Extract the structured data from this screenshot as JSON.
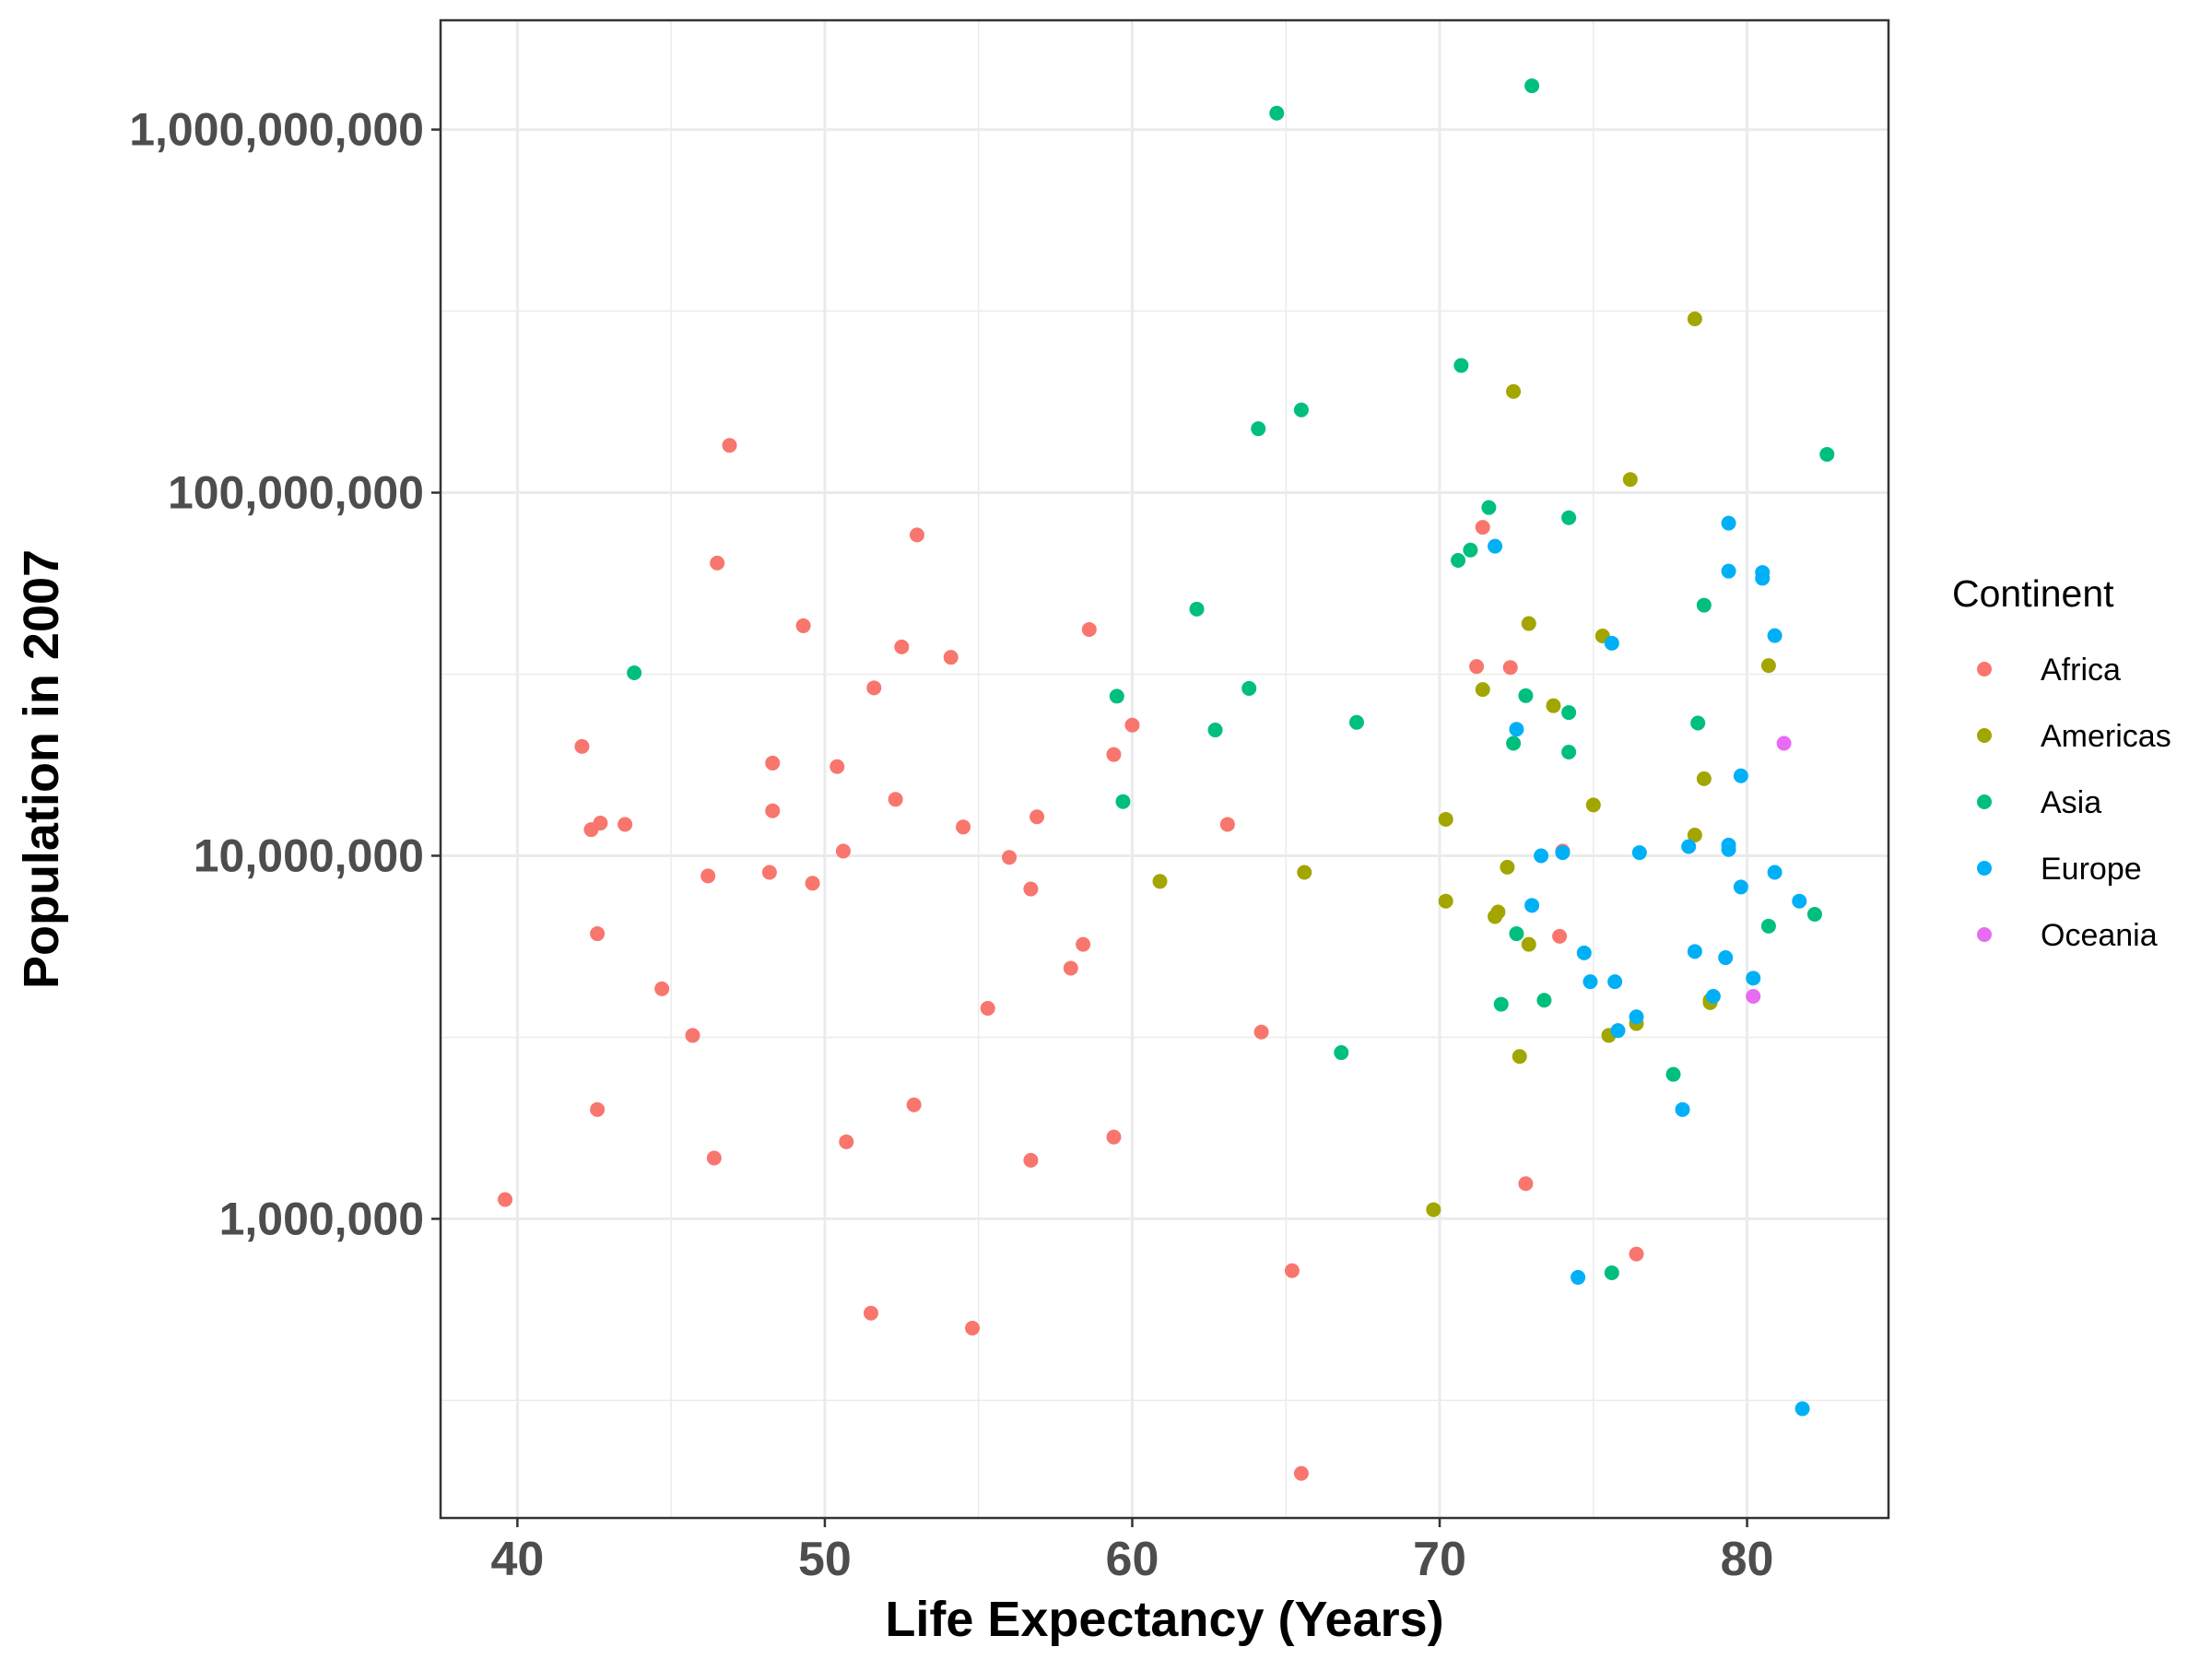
{
  "chart_data": {
    "type": "scatter",
    "xlabel": "Life Expectancy (Years)",
    "ylabel": "Population in 2007",
    "x_scale": "linear",
    "y_scale": "log10",
    "xlim": [
      37.5,
      84.6
    ],
    "ylim": [
      150000,
      2000000000
    ],
    "x_ticks": [
      40,
      50,
      60,
      70,
      80
    ],
    "y_ticks": [
      1000000,
      10000000,
      100000000,
      1000000000
    ],
    "y_tick_labels": [
      "1,000,000",
      "10,000,000",
      "100,000,000",
      "1,000,000,000"
    ],
    "grid": true,
    "legend": {
      "title": "Continent",
      "position": "right"
    },
    "series": [
      {
        "name": "Africa",
        "color": "#F8766D",
        "points": [
          [
            39.6,
            1130000
          ],
          [
            42.1,
            20000000
          ],
          [
            42.4,
            11800000
          ],
          [
            42.7,
            12300000
          ],
          [
            43.5,
            12200000
          ],
          [
            42.6,
            6100000
          ],
          [
            42.6,
            2000000
          ],
          [
            44.7,
            4300000
          ],
          [
            45.7,
            3200000
          ],
          [
            46.2,
            8800000
          ],
          [
            46.4,
            1470000
          ],
          [
            46.5,
            64000000
          ],
          [
            46.9,
            135000000
          ],
          [
            48.2,
            9000000
          ],
          [
            48.3,
            18000000
          ],
          [
            48.3,
            13300000
          ],
          [
            49.3,
            43000000
          ],
          [
            49.6,
            8400000
          ],
          [
            50.4,
            17600000
          ],
          [
            50.6,
            10300000
          ],
          [
            50.7,
            1630000
          ],
          [
            51.5,
            550000
          ],
          [
            51.6,
            29000000
          ],
          [
            52.3,
            14300000
          ],
          [
            52.5,
            37600000
          ],
          [
            52.9,
            2060000
          ],
          [
            53.0,
            76500000
          ],
          [
            54.1,
            35200000
          ],
          [
            54.5,
            12000000
          ],
          [
            54.8,
            500000
          ],
          [
            55.3,
            3800000
          ],
          [
            56.0,
            9900000
          ],
          [
            56.7,
            8100000
          ],
          [
            56.7,
            1450000
          ],
          [
            56.9,
            12800000
          ],
          [
            58.0,
            4900000
          ],
          [
            58.4,
            5700000
          ],
          [
            58.6,
            42000000
          ],
          [
            59.4,
            19000000
          ],
          [
            59.4,
            1680000
          ],
          [
            60.0,
            22900000
          ],
          [
            63.1,
            12200000
          ],
          [
            64.2,
            3270000
          ],
          [
            65.2,
            720000
          ],
          [
            65.5,
            199000
          ],
          [
            71.2,
            33200000
          ],
          [
            71.4,
            80300000
          ],
          [
            72.3,
            33000000
          ],
          [
            72.8,
            1250000
          ],
          [
            73.9,
            6000000
          ],
          [
            74.0,
            10300000
          ],
          [
            76.4,
            800000
          ]
        ]
      },
      {
        "name": "Americas",
        "color": "#A3A500",
        "points": [
          [
            60.9,
            8500000
          ],
          [
            65.6,
            9000000
          ],
          [
            69.8,
            1060000
          ],
          [
            70.2,
            12600000
          ],
          [
            70.2,
            7500000
          ],
          [
            71.4,
            28700000
          ],
          [
            71.8,
            6800000
          ],
          [
            71.9,
            7000000
          ],
          [
            72.2,
            9300000
          ],
          [
            72.4,
            190000000
          ],
          [
            72.6,
            2800000
          ],
          [
            72.9,
            43600000
          ],
          [
            72.9,
            5700000
          ],
          [
            73.7,
            25900000
          ],
          [
            75.0,
            13800000
          ],
          [
            75.3,
            40300000
          ],
          [
            75.5,
            3200000
          ],
          [
            76.2,
            108700000
          ],
          [
            76.4,
            3450000
          ],
          [
            78.3,
            11400000
          ],
          [
            78.3,
            301000000
          ],
          [
            78.6,
            16300000
          ],
          [
            78.8,
            4000000
          ],
          [
            78.8,
            3940000
          ],
          [
            80.7,
            33400000
          ]
        ]
      },
      {
        "name": "Asia",
        "color": "#00BF7D",
        "points": [
          [
            43.8,
            31900000
          ],
          [
            59.5,
            27500000
          ],
          [
            59.7,
            14100000
          ],
          [
            62.1,
            47800000
          ],
          [
            62.7,
            22200000
          ],
          [
            63.8,
            28900000
          ],
          [
            64.1,
            150000000
          ],
          [
            64.7,
            1110000000
          ],
          [
            65.5,
            169000000
          ],
          [
            66.8,
            2870000
          ],
          [
            67.3,
            23300000
          ],
          [
            70.6,
            65100000
          ],
          [
            70.7,
            224000000
          ],
          [
            71.0,
            69500000
          ],
          [
            71.6,
            91000000
          ],
          [
            72.0,
            3900000
          ],
          [
            72.4,
            20400000
          ],
          [
            72.5,
            6100000
          ],
          [
            72.8,
            27600000
          ],
          [
            73.0,
            1320000000
          ],
          [
            73.4,
            4000000
          ],
          [
            74.2,
            19300000
          ],
          [
            74.2,
            24800000
          ],
          [
            74.2,
            85300000
          ],
          [
            75.6,
            710000
          ],
          [
            77.6,
            2500000
          ],
          [
            78.4,
            23200000
          ],
          [
            78.6,
            49000000
          ],
          [
            80.7,
            6400000
          ],
          [
            82.2,
            6900000
          ],
          [
            82.6,
            127500000
          ]
        ]
      },
      {
        "name": "Europe",
        "color": "#00B0F6",
        "points": [
          [
            71.8,
            71200000
          ],
          [
            72.5,
            22300000
          ],
          [
            73.0,
            7300000
          ],
          [
            73.3,
            10000000
          ],
          [
            74.0,
            10200000
          ],
          [
            74.5,
            690000
          ],
          [
            74.7,
            5400000
          ],
          [
            74.9,
            4500000
          ],
          [
            75.6,
            38500000
          ],
          [
            75.7,
            4500000
          ],
          [
            75.8,
            3300000
          ],
          [
            76.4,
            3600000
          ],
          [
            76.5,
            10200000
          ],
          [
            77.9,
            2000000
          ],
          [
            78.1,
            10600000
          ],
          [
            78.3,
            5450000
          ],
          [
            78.9,
            4100000
          ],
          [
            79.3,
            5240000
          ],
          [
            79.4,
            82400000
          ],
          [
            79.4,
            10700000
          ],
          [
            79.4,
            60800000
          ],
          [
            79.4,
            10400000
          ],
          [
            79.8,
            16600000
          ],
          [
            79.8,
            8200000
          ],
          [
            80.2,
            4600000
          ],
          [
            80.5,
            58100000
          ],
          [
            80.5,
            60300000
          ],
          [
            80.9,
            40400000
          ],
          [
            80.9,
            9000000
          ],
          [
            81.7,
            7500000
          ],
          [
            81.8,
            300000
          ]
        ]
      },
      {
        "name": "Oceania",
        "color": "#E76BF3",
        "points": [
          [
            80.2,
            4100000
          ],
          [
            81.2,
            20400000
          ]
        ]
      }
    ]
  }
}
